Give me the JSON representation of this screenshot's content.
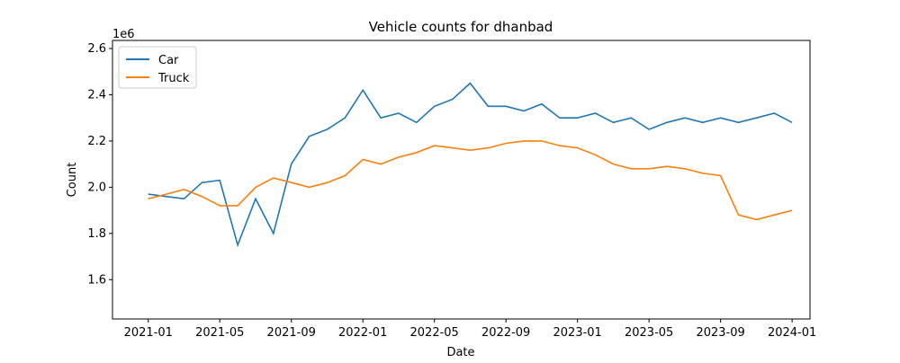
{
  "chart_data": {
    "type": "line",
    "title": "Vehicle counts for dhanbad",
    "x_label": "Date",
    "y_label": "Count",
    "y_offset_label": "1e6",
    "x": [
      "2021-01",
      "2021-02",
      "2021-03",
      "2021-04",
      "2021-05",
      "2021-06",
      "2021-07",
      "2021-08",
      "2021-09",
      "2021-10",
      "2021-11",
      "2021-12",
      "2022-01",
      "2022-02",
      "2022-03",
      "2022-04",
      "2022-05",
      "2022-06",
      "2022-07",
      "2022-08",
      "2022-09",
      "2022-10",
      "2022-11",
      "2022-12",
      "2023-01",
      "2023-02",
      "2023-03",
      "2023-04",
      "2023-05",
      "2023-06",
      "2023-07",
      "2023-08",
      "2023-09",
      "2023-10",
      "2023-11",
      "2023-12",
      "2024-01"
    ],
    "series": [
      {
        "name": "Car",
        "color": "#1f77b4",
        "values": [
          1.97,
          1.96,
          1.95,
          2.02,
          2.03,
          1.75,
          1.95,
          1.8,
          2.1,
          2.22,
          2.25,
          2.3,
          2.42,
          2.3,
          2.32,
          2.28,
          2.35,
          2.38,
          2.45,
          2.35,
          2.35,
          2.33,
          2.36,
          2.3,
          2.3,
          2.32,
          2.28,
          2.3,
          2.25,
          2.28,
          2.3,
          2.28,
          2.3,
          2.28,
          2.3,
          2.32,
          2.28
        ]
      },
      {
        "name": "Truck",
        "color": "#ff7f0e",
        "values": [
          1.95,
          1.97,
          1.99,
          1.96,
          1.92,
          1.92,
          2.0,
          2.04,
          2.02,
          2.0,
          2.02,
          2.05,
          2.12,
          2.1,
          2.13,
          2.15,
          2.18,
          2.17,
          2.16,
          2.17,
          2.19,
          2.2,
          2.2,
          2.18,
          2.17,
          2.14,
          2.1,
          2.08,
          2.08,
          2.09,
          2.08,
          2.06,
          2.05,
          1.88,
          1.86,
          1.88,
          1.9
        ]
      }
    ],
    "xlim": [
      "2020-11",
      "2024-02"
    ],
    "xticks": [
      "2021-01",
      "2021-05",
      "2021-09",
      "2022-01",
      "2022-05",
      "2022-09",
      "2023-01",
      "2023-05",
      "2023-09",
      "2024-01"
    ],
    "ylim": [
      1.43,
      2.635
    ],
    "yticks": [
      1.6,
      1.8,
      {
        "value": 2,
        "label": "2.0"
      },
      2.2,
      2.4,
      2.6
    ],
    "legend": "upper left"
  }
}
